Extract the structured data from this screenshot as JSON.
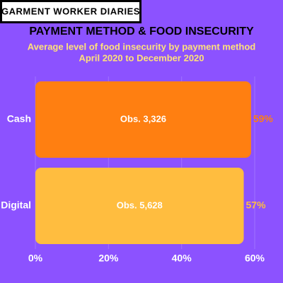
{
  "chart_data": {
    "type": "hbar",
    "brand": "GARMENT WORKER DIARIES",
    "title": "PAYMENT METHOD & FOOD INSECURITY",
    "subtitle": [
      "Average level of food insecurity by payment method",
      "April 2020 to December 2020"
    ],
    "categories": [
      "Cash",
      "Digital"
    ],
    "values": [
      59,
      57
    ],
    "value_labels": [
      "59%",
      "57%"
    ],
    "bar_labels": [
      "Obs. 3,326",
      "Obs. 5,628"
    ],
    "colors": [
      "#ff7f11",
      "#ffbd3f"
    ],
    "xlim": [
      0,
      60
    ],
    "xticks": [
      {
        "value": 0,
        "label": "0%"
      },
      {
        "value": 20,
        "label": "20%"
      },
      {
        "value": 40,
        "label": "40%"
      },
      {
        "value": 60,
        "label": "60%"
      }
    ],
    "grid": true
  }
}
